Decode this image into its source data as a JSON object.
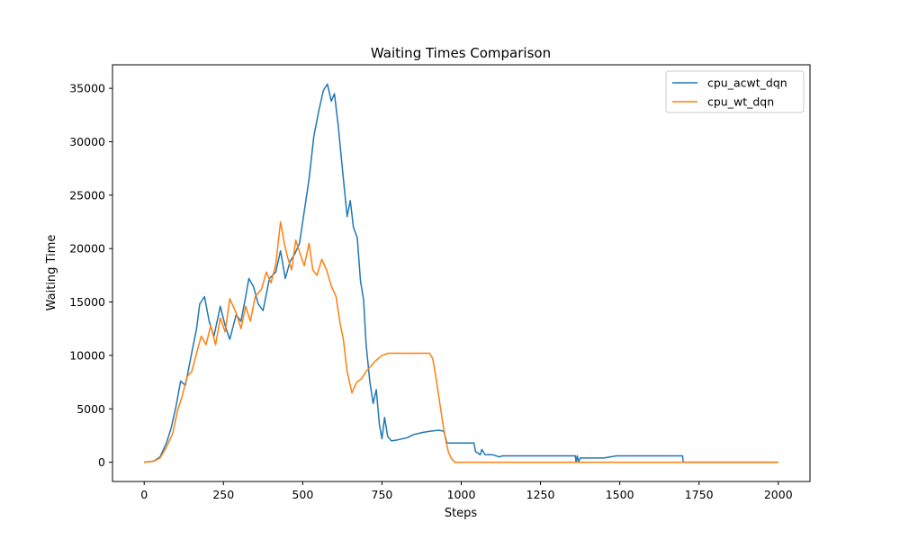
{
  "chart_data": {
    "type": "line",
    "title": "Waiting Times Comparison",
    "xlabel": "Steps",
    "ylabel": "Waiting Time",
    "xlim": [
      -100,
      2100
    ],
    "ylim": [
      -1800,
      37200
    ],
    "xticks": [
      0,
      250,
      500,
      750,
      1000,
      1250,
      1500,
      1750,
      2000
    ],
    "yticks": [
      0,
      5000,
      10000,
      15000,
      20000,
      25000,
      30000,
      35000
    ],
    "grid": false,
    "legend_position": "top-right",
    "series": [
      {
        "name": "cpu_acwt_dqn",
        "color": "#1f77b4",
        "points": [
          [
            0,
            0
          ],
          [
            30,
            100
          ],
          [
            50,
            500
          ],
          [
            70,
            1800
          ],
          [
            85,
            3200
          ],
          [
            100,
            5200
          ],
          [
            115,
            7600
          ],
          [
            130,
            7200
          ],
          [
            145,
            9500
          ],
          [
            165,
            12500
          ],
          [
            175,
            14800
          ],
          [
            190,
            15500
          ],
          [
            205,
            13200
          ],
          [
            220,
            11800
          ],
          [
            240,
            14600
          ],
          [
            255,
            12800
          ],
          [
            270,
            11500
          ],
          [
            290,
            13800
          ],
          [
            305,
            13200
          ],
          [
            320,
            15500
          ],
          [
            330,
            17200
          ],
          [
            345,
            16400
          ],
          [
            360,
            14800
          ],
          [
            375,
            14200
          ],
          [
            395,
            17200
          ],
          [
            415,
            17800
          ],
          [
            430,
            19800
          ],
          [
            445,
            17200
          ],
          [
            460,
            18800
          ],
          [
            475,
            19500
          ],
          [
            490,
            20500
          ],
          [
            505,
            23500
          ],
          [
            520,
            26500
          ],
          [
            535,
            30500
          ],
          [
            550,
            32800
          ],
          [
            565,
            34800
          ],
          [
            578,
            35400
          ],
          [
            590,
            33800
          ],
          [
            600,
            34500
          ],
          [
            612,
            31500
          ],
          [
            625,
            27500
          ],
          [
            640,
            23000
          ],
          [
            650,
            24500
          ],
          [
            660,
            22000
          ],
          [
            672,
            21000
          ],
          [
            682,
            17000
          ],
          [
            692,
            15200
          ],
          [
            700,
            11000
          ],
          [
            712,
            7500
          ],
          [
            722,
            5500
          ],
          [
            732,
            6800
          ],
          [
            742,
            3500
          ],
          [
            750,
            2200
          ],
          [
            758,
            4200
          ],
          [
            768,
            2400
          ],
          [
            780,
            2000
          ],
          [
            800,
            2100
          ],
          [
            830,
            2300
          ],
          [
            850,
            2600
          ],
          [
            880,
            2800
          ],
          [
            900,
            2900
          ],
          [
            930,
            3000
          ],
          [
            945,
            2900
          ],
          [
            955,
            1800
          ],
          [
            1010,
            1800
          ],
          [
            1040,
            1800
          ],
          [
            1045,
            1000
          ],
          [
            1060,
            700
          ],
          [
            1065,
            1200
          ],
          [
            1075,
            700
          ],
          [
            1100,
            700
          ],
          [
            1120,
            500
          ],
          [
            1130,
            600
          ],
          [
            1300,
            600
          ],
          [
            1360,
            600
          ],
          [
            1362,
            0
          ],
          [
            1366,
            600
          ],
          [
            1370,
            0
          ],
          [
            1375,
            400
          ],
          [
            1450,
            400
          ],
          [
            1490,
            600
          ],
          [
            1698,
            600
          ],
          [
            1700,
            0
          ],
          [
            1750,
            0
          ],
          [
            1850,
            0
          ],
          [
            2000,
            0
          ]
        ]
      },
      {
        "name": "cpu_wt_dqn",
        "color": "#ff7f0e",
        "points": [
          [
            0,
            0
          ],
          [
            30,
            100
          ],
          [
            50,
            400
          ],
          [
            70,
            1400
          ],
          [
            90,
            2700
          ],
          [
            105,
            4800
          ],
          [
            120,
            6200
          ],
          [
            135,
            8000
          ],
          [
            150,
            8500
          ],
          [
            165,
            10200
          ],
          [
            180,
            11800
          ],
          [
            195,
            11000
          ],
          [
            210,
            12800
          ],
          [
            225,
            11000
          ],
          [
            240,
            13500
          ],
          [
            255,
            12200
          ],
          [
            270,
            15300
          ],
          [
            290,
            14000
          ],
          [
            305,
            12500
          ],
          [
            320,
            14600
          ],
          [
            335,
            13200
          ],
          [
            350,
            15500
          ],
          [
            370,
            16200
          ],
          [
            385,
            17800
          ],
          [
            400,
            16800
          ],
          [
            415,
            18500
          ],
          [
            430,
            22500
          ],
          [
            442,
            20500
          ],
          [
            452,
            19200
          ],
          [
            465,
            18000
          ],
          [
            478,
            20800
          ],
          [
            492,
            19500
          ],
          [
            505,
            18400
          ],
          [
            520,
            20500
          ],
          [
            532,
            18000
          ],
          [
            545,
            17500
          ],
          [
            560,
            19000
          ],
          [
            575,
            18000
          ],
          [
            590,
            16500
          ],
          [
            605,
            15500
          ],
          [
            618,
            13000
          ],
          [
            628,
            11500
          ],
          [
            640,
            8500
          ],
          [
            655,
            6500
          ],
          [
            670,
            7500
          ],
          [
            685,
            7800
          ],
          [
            700,
            8500
          ],
          [
            715,
            9000
          ],
          [
            730,
            9500
          ],
          [
            750,
            10000
          ],
          [
            770,
            10200
          ],
          [
            800,
            10200
          ],
          [
            850,
            10200
          ],
          [
            880,
            10200
          ],
          [
            900,
            10200
          ],
          [
            910,
            9700
          ],
          [
            920,
            8000
          ],
          [
            930,
            6000
          ],
          [
            940,
            4000
          ],
          [
            950,
            2200
          ],
          [
            960,
            900
          ],
          [
            970,
            300
          ],
          [
            980,
            0
          ],
          [
            1100,
            0
          ],
          [
            1500,
            0
          ],
          [
            1800,
            0
          ],
          [
            2000,
            0
          ]
        ]
      }
    ]
  }
}
